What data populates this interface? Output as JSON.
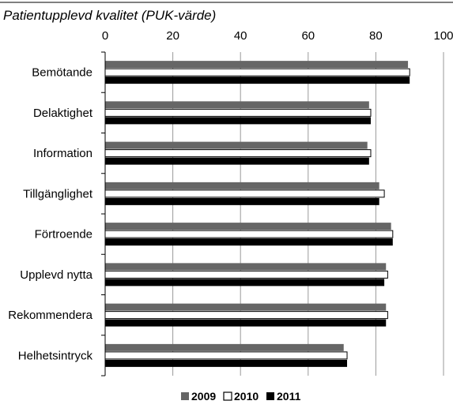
{
  "chart_data": {
    "type": "bar",
    "orientation": "horizontal",
    "title": "Patientupplevd kvalitet (PUK-värde)",
    "categories": [
      "Bemötande",
      "Delaktighet",
      "Information",
      "Tillgänglighet",
      "Förtroende",
      "Upplevd nytta",
      "Rekommendera",
      "Helhetsintryck"
    ],
    "series": [
      {
        "name": "2009",
        "values": [
          89.5,
          78,
          77.5,
          81,
          84.5,
          83,
          83,
          70.5
        ],
        "color": "#666666"
      },
      {
        "name": "2010",
        "values": [
          90,
          78.5,
          78.5,
          82.5,
          85,
          83.5,
          83.5,
          71.5
        ],
        "color": "#ffffff"
      },
      {
        "name": "2011",
        "values": [
          90,
          78.5,
          78,
          81,
          85,
          82.5,
          83,
          71.5
        ],
        "color": "#000000"
      }
    ],
    "xlim": [
      0,
      100
    ],
    "xticks": [
      0,
      20,
      40,
      60,
      80,
      100
    ],
    "xtick_labels": [
      "0",
      "20",
      "40",
      "60",
      "80",
      "100"
    ],
    "grid": true,
    "legend_position": "bottom"
  }
}
